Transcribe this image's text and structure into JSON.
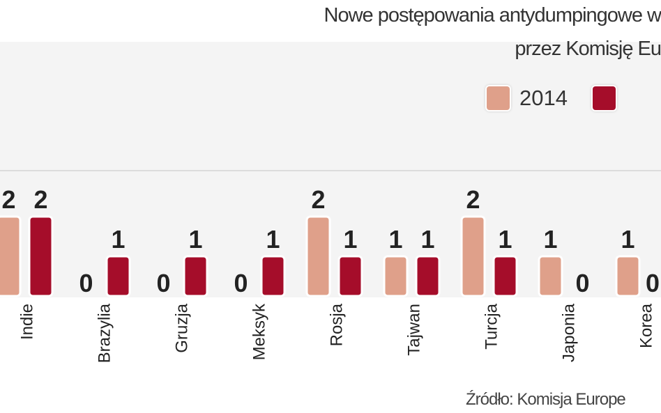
{
  "title_line1": "Nowe postępowania antydumpingowe w",
  "title_line2": "przez Komisję Eu",
  "source": "Źródło: Komisja Europe",
  "chart_data": {
    "type": "bar",
    "title": "Nowe postępowania antydumpingowe w przez Komisję Eu",
    "categories": [
      "Indie",
      "Brazylia",
      "Gruzja",
      "Meksyk",
      "Rosja",
      "Tajwan",
      "Turcja",
      "Japonia",
      "Korea"
    ],
    "series": [
      {
        "name": "2014",
        "color": "#dfa08a",
        "values": [
          2,
          0,
          0,
          0,
          2,
          1,
          2,
          1,
          1
        ]
      },
      {
        "name": "",
        "color": "#a50d2a",
        "values": [
          2,
          1,
          1,
          1,
          1,
          1,
          1,
          0,
          0
        ]
      }
    ],
    "data_labels": true,
    "legend": "top-right",
    "grid": false
  }
}
